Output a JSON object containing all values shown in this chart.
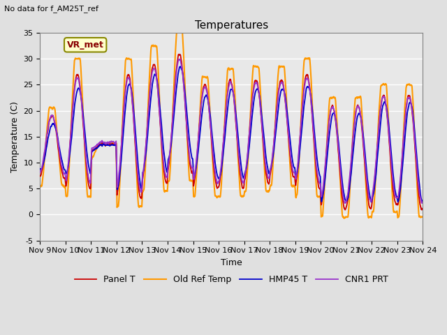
{
  "title": "Temperatures",
  "suptitle": "No data for f_AM25T_ref",
  "xlabel": "Time",
  "ylabel": "Temperature (C)",
  "ylim": [
    -5,
    35
  ],
  "x_tick_labels": [
    "Nov 9",
    "Nov 10",
    "Nov 11",
    "Nov 12",
    "Nov 13",
    "Nov 14",
    "Nov 15",
    "Nov 16",
    "Nov 17",
    "Nov 18",
    "Nov 19",
    "Nov 20",
    "Nov 21",
    "Nov 22",
    "Nov 23",
    "Nov 24"
  ],
  "yticks": [
    -5,
    0,
    5,
    10,
    15,
    20,
    25,
    30,
    35
  ],
  "legend_labels": [
    "Panel T",
    "Old Ref Temp",
    "HMP45 T",
    "CNR1 PRT"
  ],
  "colors": [
    "#cc0000",
    "#ff9900",
    "#0000cc",
    "#9933cc"
  ],
  "linewidths": [
    1.3,
    1.5,
    1.3,
    1.3
  ],
  "annotation_text": "VR_met",
  "bg_color": "#e0e0e0",
  "plot_bg_color": "#e8e8e8",
  "title_fontsize": 11,
  "label_fontsize": 9,
  "tick_fontsize": 8,
  "day_profiles": {
    "mins": [
      7,
      5,
      12,
      3,
      6,
      8,
      5,
      5,
      6,
      7,
      5,
      1,
      1,
      2,
      1
    ],
    "maxes": [
      19,
      27,
      13.5,
      27,
      29,
      31,
      25,
      26,
      26,
      26,
      27,
      21,
      21,
      23,
      23
    ],
    "orange_boost": [
      1.5,
      3.0,
      0.5,
      3.0,
      3.5,
      4.5,
      1.5,
      2.0,
      2.5,
      2.5,
      3.0,
      1.5,
      1.5,
      2.0,
      2.0
    ],
    "blue_scale": [
      0.75,
      0.75,
      1.0,
      0.85,
      0.82,
      0.78,
      0.8,
      0.82,
      0.82,
      0.82,
      0.8,
      0.85,
      0.85,
      0.88,
      0.88
    ]
  }
}
